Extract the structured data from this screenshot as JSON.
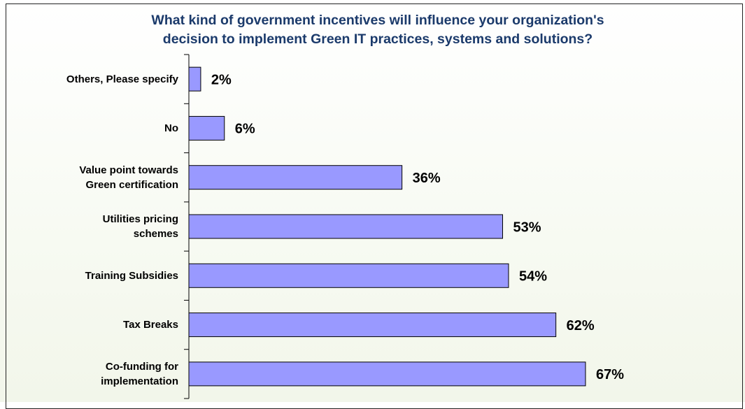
{
  "chart_data": {
    "type": "bar",
    "orientation": "horizontal",
    "title": "What kind of government incentives will influence your organization's\ndecision to implement Green IT practices, systems and solutions?",
    "categories": [
      "Others, Please specify",
      "No",
      "Value point towards\nGreen certification",
      "Utilities pricing\nschemes",
      "Training Subsidies",
      "Tax Breaks",
      "Co-funding for\nimplementation"
    ],
    "values": [
      2,
      6,
      36,
      53,
      54,
      62,
      67
    ],
    "value_labels": [
      "2%",
      "6%",
      "36%",
      "53%",
      "54%",
      "62%",
      "67%"
    ],
    "color": "#9999ff",
    "xlim": [
      0,
      80
    ]
  }
}
